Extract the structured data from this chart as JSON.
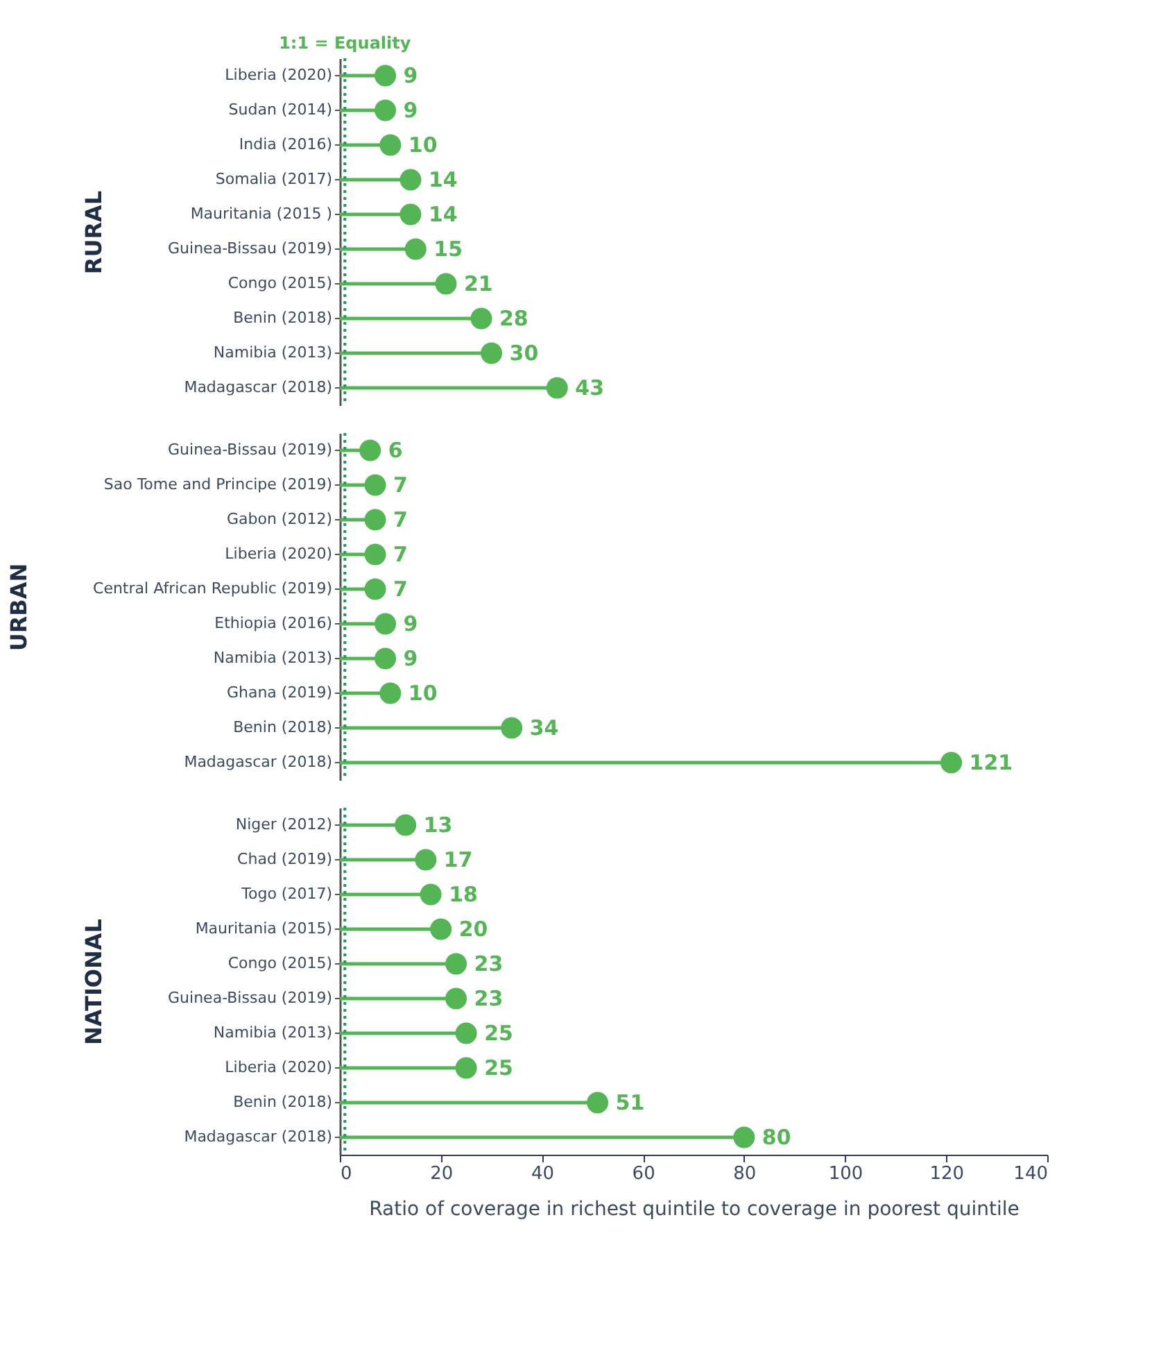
{
  "chart_data": [
    {
      "type": "lollipop",
      "orientation": "horizontal",
      "ylabel": "RURAL",
      "color": "#53b553",
      "data_labels": true,
      "tick_labels": "y",
      "xlim": [
        0,
        140
      ],
      "xticks": [
        0,
        20,
        40,
        60,
        80,
        100,
        120,
        140
      ],
      "categories": [
        "Liberia (2020)",
        "Sudan (2014)",
        "India (2016)",
        "Somalia (2017)",
        "Mauritania (2015 )",
        "Guinea-Bissau (2019)",
        "Congo (2015)",
        "Benin (2018)",
        "Namibia (2013)",
        "Madagascar (2018)"
      ],
      "values": [
        9,
        9,
        10,
        14,
        14,
        15,
        21,
        28,
        30,
        43
      ],
      "ref_lines": [
        {
          "axis": "x",
          "value": 1,
          "label": "1:1 = Equality",
          "color": "#1a9c5a",
          "line_style": "dotted"
        }
      ]
    },
    {
      "type": "lollipop",
      "orientation": "horizontal",
      "ylabel": "URBAN",
      "color": "#53b553",
      "data_labels": true,
      "tick_labels": "y",
      "xlim": [
        0,
        140
      ],
      "xticks": [
        0,
        20,
        40,
        60,
        80,
        100,
        120,
        140
      ],
      "categories": [
        "Guinea-Bissau (2019)",
        "Sao Tome and Principe (2019)",
        "Gabon (2012)",
        "Liberia (2020)",
        "Central African Republic (2019)",
        "Ethiopia (2016)",
        "Namibia (2013)",
        "Ghana (2019)",
        "Benin (2018)",
        "Madagascar (2018)"
      ],
      "values": [
        6,
        7,
        7,
        7,
        7,
        9,
        9,
        10,
        34,
        121
      ],
      "ref_lines": [
        {
          "axis": "x",
          "value": 1,
          "color": "#1a9c5a",
          "line_style": "dotted"
        }
      ]
    },
    {
      "type": "lollipop",
      "orientation": "horizontal",
      "ylabel": "NATIONAL",
      "xlabel": "Ratio of coverage in richest quintile to coverage in poorest quintile",
      "color": "#53b553",
      "data_labels": true,
      "xlim": [
        0,
        140
      ],
      "xticks": [
        0,
        20,
        40,
        60,
        80,
        100,
        120,
        140
      ],
      "categories": [
        "Niger (2012)",
        "Chad (2019)",
        "Togo (2017)",
        "Mauritania (2015)",
        "Congo (2015)",
        "Guinea-Bissau (2019)",
        "Namibia (2013)",
        "Liberia (2020)",
        "Benin (2018)",
        "Madagascar (2018)"
      ],
      "values": [
        13,
        17,
        18,
        20,
        23,
        23,
        25,
        25,
        51,
        80
      ],
      "ref_lines": [
        {
          "axis": "x",
          "value": 1,
          "color": "#1a9c5a",
          "line_style": "dotted"
        }
      ]
    }
  ]
}
